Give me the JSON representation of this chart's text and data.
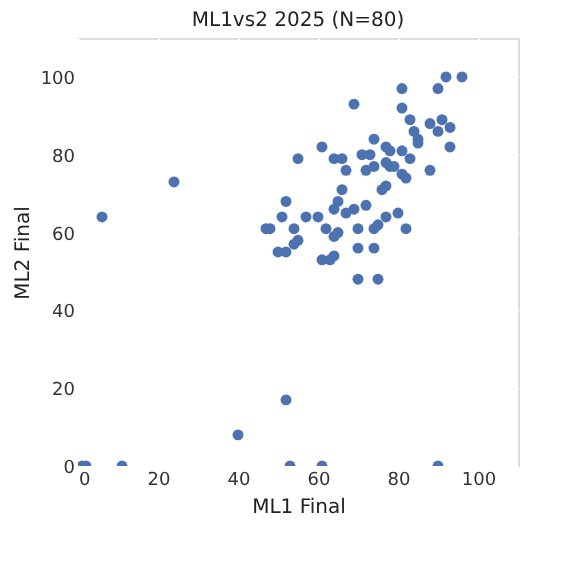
{
  "chart_data": {
    "type": "scatter",
    "title": "ML1vs2 2025 (N=80)",
    "xlabel": "ML1 Final",
    "ylabel": "ML2 Final",
    "xlim": [
      0,
      110
    ],
    "ylim": [
      0,
      110
    ],
    "xticks": [
      0,
      20,
      40,
      60,
      80,
      100
    ],
    "yticks": [
      0,
      20,
      40,
      60,
      80,
      100
    ],
    "grid": true,
    "marker": "circle",
    "series": [
      {
        "color": "#4c72b0",
        "x": [
          1,
          2,
          11,
          53,
          61,
          90,
          40,
          52,
          6,
          24,
          69,
          81,
          81,
          92,
          96,
          90,
          83,
          84,
          85,
          88,
          91,
          93,
          90,
          93,
          88,
          83,
          81,
          77,
          74,
          71,
          61,
          55,
          64,
          66,
          67,
          72,
          74,
          77,
          78,
          77,
          76,
          81,
          66,
          65,
          64,
          67,
          69,
          52,
          51,
          57,
          60,
          54,
          47,
          48,
          62,
          64,
          65,
          70,
          74,
          82,
          80,
          77,
          55,
          54,
          50,
          52,
          70,
          74,
          61,
          64,
          70,
          75,
          75,
          73,
          79,
          82,
          78,
          63,
          72,
          85
        ],
        "values": [
          0,
          0,
          0,
          0,
          0,
          0,
          8,
          17,
          64,
          73,
          93,
          97,
          92,
          100,
          100,
          97,
          89,
          86,
          83,
          88,
          89,
          87,
          86,
          82,
          76,
          79,
          81,
          82,
          84,
          80,
          82,
          79,
          79,
          79,
          76,
          76,
          77,
          78,
          77,
          72,
          71,
          75,
          71,
          68,
          66,
          65,
          66,
          68,
          64,
          64,
          64,
          61,
          61,
          61,
          61,
          59,
          60,
          61,
          61,
          61,
          65,
          64,
          58,
          57,
          55,
          55,
          56,
          56,
          53,
          54,
          48,
          48,
          62,
          80,
          77,
          74,
          81,
          53,
          67,
          84
        ]
      }
    ]
  }
}
